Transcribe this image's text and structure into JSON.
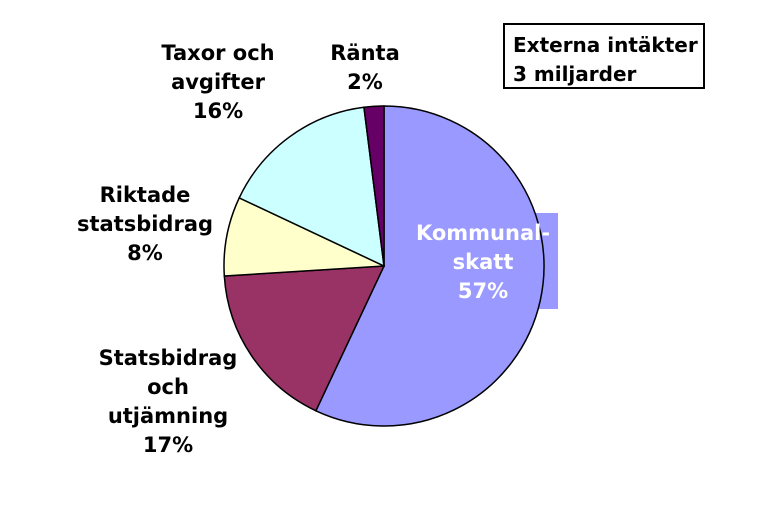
{
  "chart_data": {
    "type": "pie",
    "title": "",
    "slices": [
      {
        "name": "Kommunal-skatt",
        "lines": [
          "Kommunal-",
          "skatt"
        ],
        "value": 57,
        "label": "57%",
        "color": "#9999FF"
      },
      {
        "name": "Statsbidrag och utjämning",
        "lines": [
          "Statsbidrag",
          "och",
          "utjämning"
        ],
        "value": 17,
        "label": "17%",
        "color": "#993366"
      },
      {
        "name": "Riktade statsbidrag",
        "lines": [
          "Riktade",
          "statsbidrag"
        ],
        "value": 8,
        "label": "8%",
        "color": "#FFFFCC"
      },
      {
        "name": "Taxor och avgifter",
        "lines": [
          "Taxor och",
          "avgifter"
        ],
        "value": 16,
        "label": "16%",
        "color": "#CCFFFF"
      },
      {
        "name": "Ränta",
        "lines": [
          "Ränta"
        ],
        "value": 2,
        "label": "2%",
        "color": "#660066"
      }
    ],
    "start_angle_deg": 0,
    "direction": "clockwise",
    "legend": "none",
    "highlight_box_color": "#9999FF"
  },
  "note": {
    "line1": "Externa intäkter",
    "line2": "3 miljarder"
  }
}
